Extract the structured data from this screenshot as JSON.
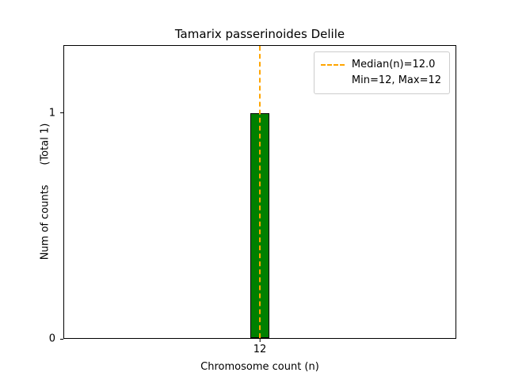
{
  "chart_data": {
    "type": "bar",
    "title": "Tamarix passerinoides Delile",
    "xlabel": "Chromosome count (n)",
    "ylabel": "Num of counts      (Total 1)",
    "categories": [
      "12"
    ],
    "values": [
      1
    ],
    "ylim": [
      0,
      1.3
    ],
    "yticks": [
      1,
      0
    ],
    "grid": false,
    "bar_color": "#008000",
    "bar_edge_color": "#000000",
    "median_line": {
      "value": 12.0,
      "color": "#ffa500",
      "style": "dashed"
    },
    "legend": {
      "position": "upper right",
      "entries": [
        "Median(n)=12.0",
        "Min=12, Max=12"
      ]
    }
  }
}
